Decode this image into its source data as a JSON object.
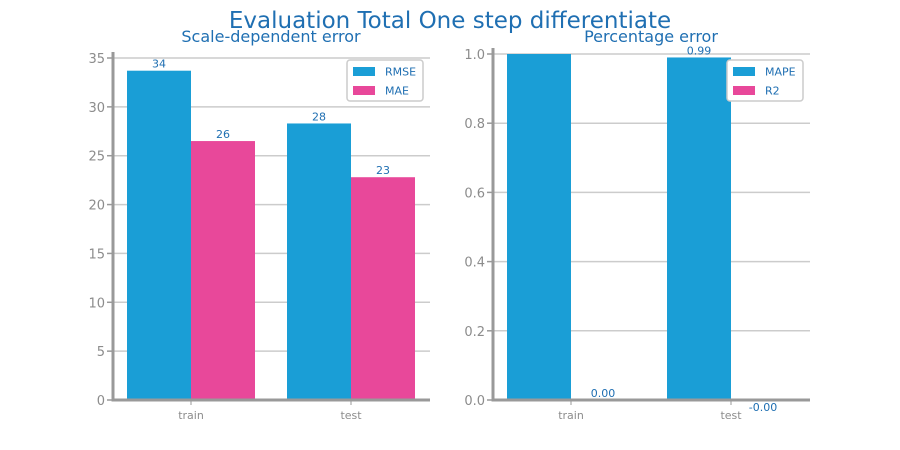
{
  "title": "Evaluation Total One step differentiate",
  "colors": {
    "blue": "#1a9ed6",
    "pink": "#e8489a",
    "text": "#1f6fb2",
    "axis": "#999999",
    "grid": "#cccccc"
  },
  "chart_data": [
    {
      "type": "bar",
      "title": "Scale-dependent error",
      "categories": [
        "train",
        "test"
      ],
      "series": [
        {
          "name": "RMSE",
          "values": [
            33.7,
            28.3
          ],
          "labels": [
            "34",
            "28"
          ],
          "color": "#1a9ed6"
        },
        {
          "name": "MAE",
          "values": [
            26.5,
            22.8
          ],
          "labels": [
            "26",
            "23"
          ],
          "color": "#e8489a"
        }
      ],
      "ylim": [
        0,
        35
      ],
      "yticks": [
        0,
        5,
        10,
        15,
        20,
        25,
        30,
        35
      ],
      "ytick_labels": [
        "0",
        "5",
        "10",
        "15",
        "20",
        "25",
        "30",
        "35"
      ],
      "grid": true,
      "legend": "top-right",
      "xlabel": "",
      "ylabel": ""
    },
    {
      "type": "bar",
      "title": "Percentage error",
      "categories": [
        "train",
        "test"
      ],
      "series": [
        {
          "name": "MAPE",
          "values": [
            1.0,
            0.99
          ],
          "labels": [
            "",
            "0.99"
          ],
          "color": "#1a9ed6"
        },
        {
          "name": "R2",
          "values": [
            0.0,
            0.0
          ],
          "labels": [
            "0.00",
            "-0.00"
          ],
          "color": "#e8489a"
        }
      ],
      "ylim": [
        0,
        1.0
      ],
      "yticks": [
        0,
        0.2,
        0.4,
        0.6,
        0.8,
        1.0
      ],
      "ytick_labels": [
        "0.0",
        "0.2",
        "0.4",
        "0.6",
        "0.8",
        "1.0"
      ],
      "grid": true,
      "legend": "top-right",
      "xlabel": "",
      "ylabel": ""
    }
  ]
}
